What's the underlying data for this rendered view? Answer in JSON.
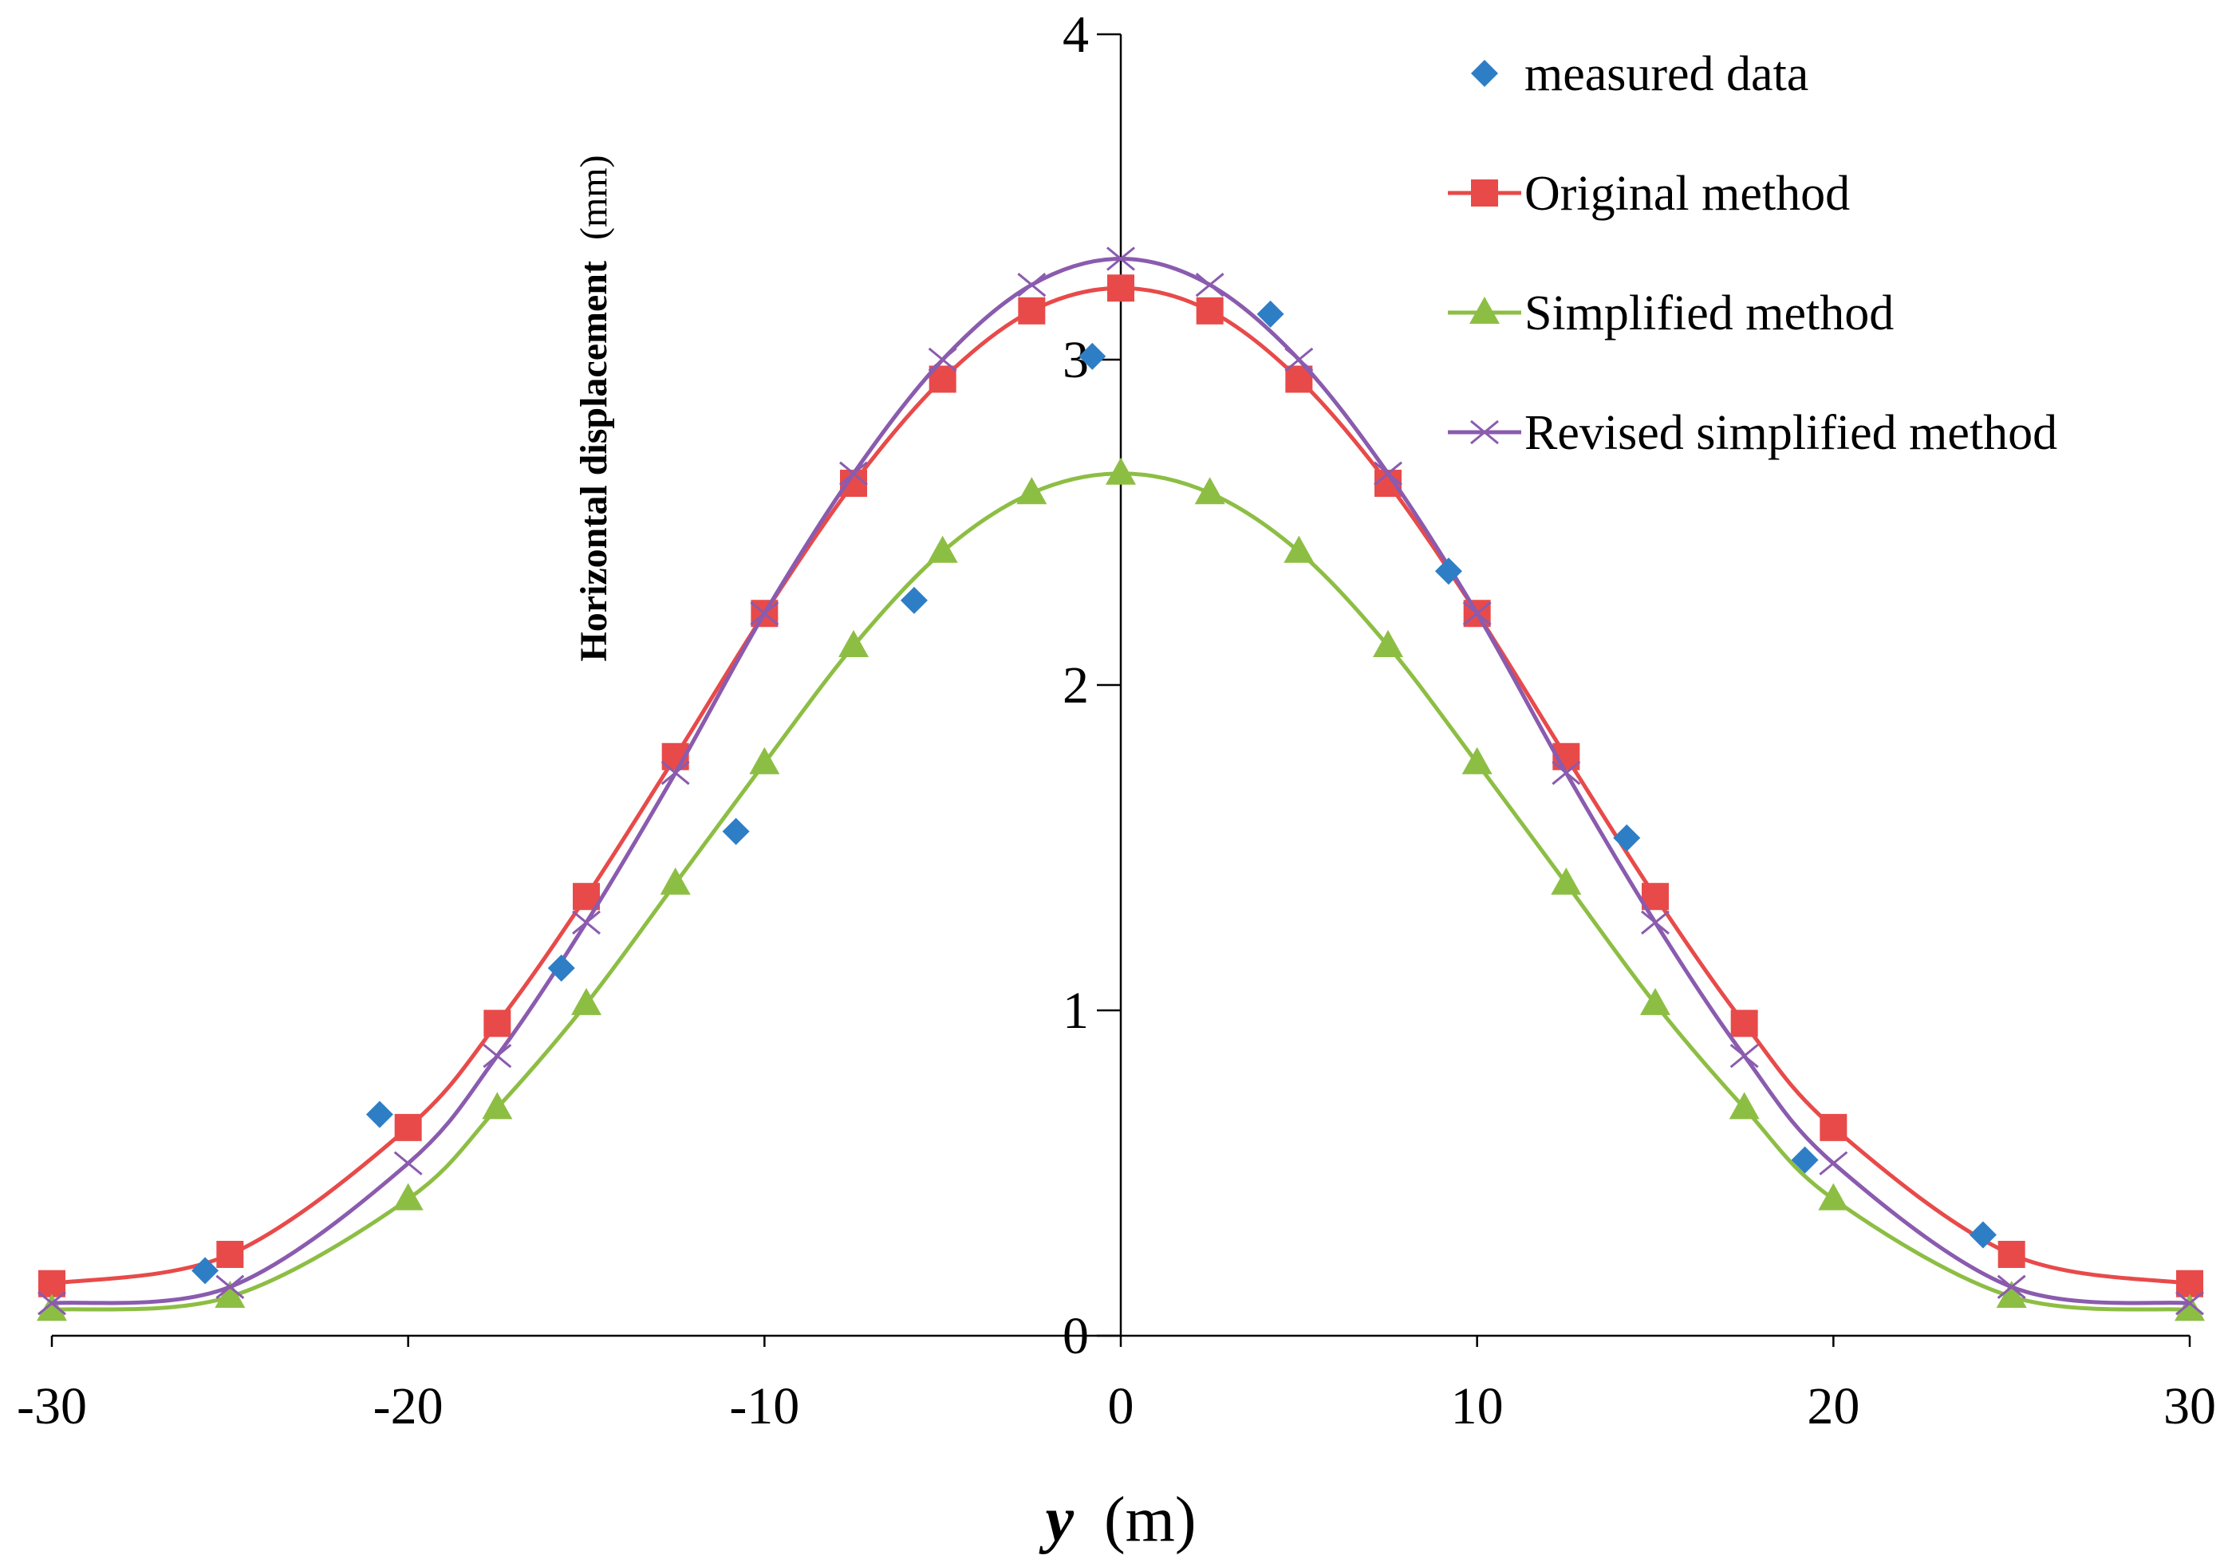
{
  "chart_data": {
    "type": "line",
    "title": "",
    "xlabel": "y",
    "xlabel_unit": "(m)",
    "ylabel": "Horizontal displacement",
    "ylabel_unit": "(mm)",
    "xlim": [
      -30,
      30
    ],
    "ylim": [
      0,
      4
    ],
    "x_ticks": [
      -30,
      -20,
      -10,
      0,
      10,
      20,
      30
    ],
    "y_ticks": [
      0,
      1,
      2,
      3,
      4
    ],
    "grid": false,
    "legend_position": "top-right",
    "series": [
      {
        "name": "measured data",
        "marker": "diamond",
        "line": false,
        "color": "#2E7EC6",
        "x": [
          -25.7,
          -20.8,
          -15.7,
          -10.8,
          -5.8,
          -0.8,
          4.2,
          9.2,
          14.2,
          19.2,
          24.2
        ],
        "y": [
          0.2,
          0.68,
          1.13,
          1.55,
          2.26,
          3.01,
          3.14,
          2.35,
          1.53,
          0.54,
          0.31
        ]
      },
      {
        "name": "Original method",
        "marker": "square",
        "line": true,
        "color": "#E84A4A",
        "x": [
          -30,
          -25,
          -20,
          -17.5,
          -15,
          -12.5,
          -10,
          -7.5,
          -5,
          -2.5,
          0,
          2.5,
          5,
          7.5,
          10,
          12.5,
          15,
          17.5,
          20,
          25,
          30
        ],
        "y": [
          0.16,
          0.25,
          0.64,
          0.96,
          1.35,
          1.78,
          2.22,
          2.62,
          2.94,
          3.15,
          3.22,
          3.15,
          2.94,
          2.62,
          2.22,
          1.78,
          1.35,
          0.96,
          0.64,
          0.25,
          0.16
        ]
      },
      {
        "name": "Simplified method",
        "marker": "triangle",
        "line": true,
        "color": "#8DBE44",
        "x": [
          -30,
          -25,
          -20,
          -17.5,
          -15,
          -12.5,
          -10,
          -7.5,
          -5,
          -2.5,
          0,
          2.5,
          5,
          7.5,
          10,
          12.5,
          15,
          17.5,
          20,
          25,
          30
        ],
        "y": [
          0.08,
          0.12,
          0.42,
          0.7,
          1.02,
          1.39,
          1.76,
          2.12,
          2.41,
          2.59,
          2.65,
          2.59,
          2.41,
          2.12,
          1.76,
          1.39,
          1.02,
          0.7,
          0.42,
          0.12,
          0.08
        ]
      },
      {
        "name": "Revised simplified method",
        "marker": "x",
        "line": true,
        "color": "#8A5BAE",
        "x": [
          -30,
          -25,
          -20,
          -17.5,
          -15,
          -12.5,
          -10,
          -7.5,
          -5,
          -2.5,
          0,
          2.5,
          5,
          7.5,
          10,
          12.5,
          15,
          17.5,
          20,
          25,
          30
        ],
        "y": [
          0.1,
          0.15,
          0.53,
          0.86,
          1.27,
          1.73,
          2.22,
          2.65,
          3.0,
          3.23,
          3.31,
          3.23,
          3.0,
          2.65,
          2.22,
          1.73,
          1.27,
          0.86,
          0.53,
          0.15,
          0.1
        ]
      }
    ]
  }
}
